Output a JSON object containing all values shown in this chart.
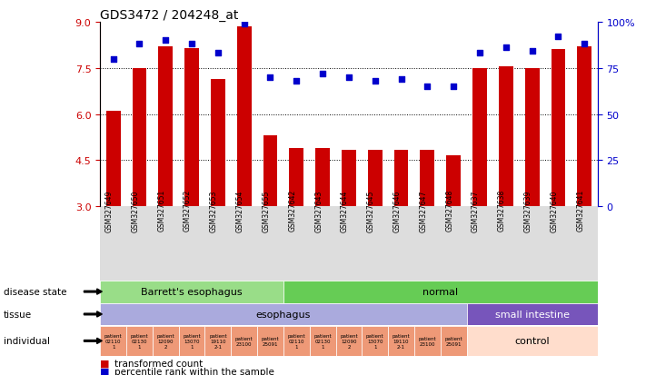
{
  "title": "GDS3472 / 204248_at",
  "samples": [
    "GSM327649",
    "GSM327650",
    "GSM327651",
    "GSM327652",
    "GSM327653",
    "GSM327654",
    "GSM327655",
    "GSM327642",
    "GSM327643",
    "GSM327644",
    "GSM327645",
    "GSM327646",
    "GSM327647",
    "GSM327648",
    "GSM327637",
    "GSM327638",
    "GSM327639",
    "GSM327640",
    "GSM327641"
  ],
  "bar_values": [
    6.1,
    7.5,
    8.2,
    8.15,
    7.15,
    8.85,
    5.3,
    4.9,
    4.9,
    4.85,
    4.85,
    4.85,
    4.85,
    4.65,
    7.5,
    7.55,
    7.5,
    8.1,
    8.2
  ],
  "dot_values": [
    80,
    88,
    90,
    88,
    83,
    99,
    70,
    68,
    72,
    70,
    68,
    69,
    65,
    65,
    83,
    86,
    84,
    92,
    88
  ],
  "ylim_left": [
    3,
    9
  ],
  "ylim_right": [
    0,
    100
  ],
  "yticks_left": [
    3,
    4.5,
    6,
    7.5,
    9
  ],
  "yticks_right": [
    0,
    25,
    50,
    75,
    100
  ],
  "bar_color": "#cc0000",
  "dot_color": "#0000cc",
  "be_color": "#99dd88",
  "normal_color": "#66cc55",
  "eso_color": "#aaaadd",
  "si_color": "#7755bb",
  "indiv_color": "#ee9977",
  "control_color": "#ffddcc",
  "label_bg": "#dddddd",
  "legend_bar": "transformed count",
  "legend_dot": "percentile rank within the sample"
}
